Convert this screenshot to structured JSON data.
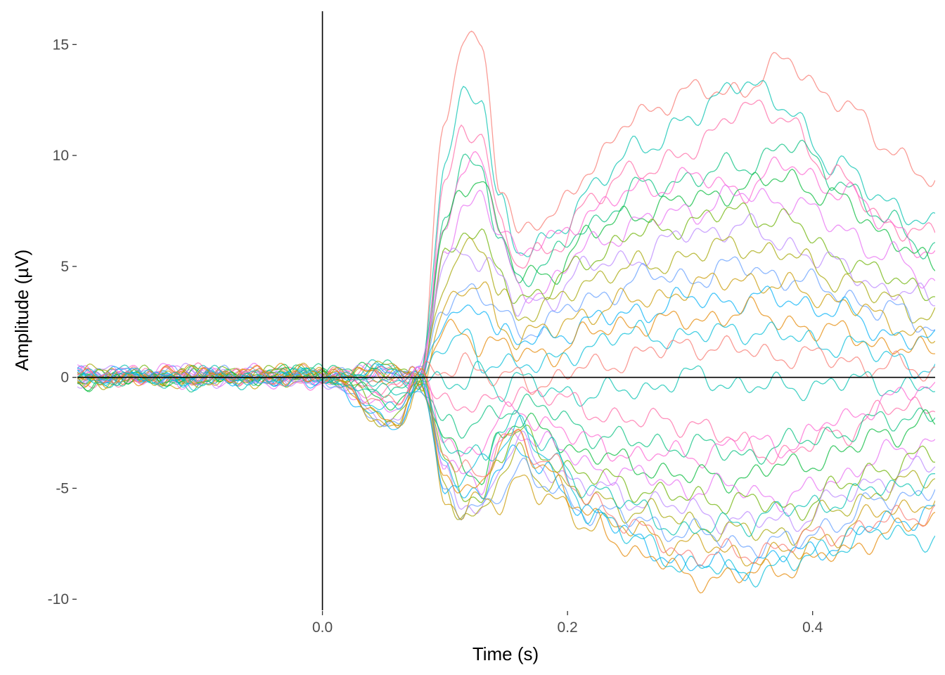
{
  "chart_data": {
    "type": "line",
    "xlabel": "Time (s)",
    "ylabel": "Amplitude (µV)",
    "xlim": [
      -0.2,
      0.5
    ],
    "ylim": [
      -10.5,
      16.5
    ],
    "x_ticks": [
      0.0,
      0.2,
      0.4
    ],
    "x_tick_labels": [
      "0.0",
      "0.2",
      "0.4"
    ],
    "y_ticks": [
      -10,
      -5,
      0,
      5,
      10,
      15
    ],
    "y_tick_labels": [
      "-10",
      "-5",
      "0",
      "5",
      "10",
      "15"
    ],
    "reference_lines": {
      "x": 0.0,
      "y": 0.0
    },
    "grid": false,
    "legend": "none",
    "sample_times": [
      -0.2,
      -0.1,
      0.0,
      0.06,
      0.08,
      0.1,
      0.115,
      0.13,
      0.145,
      0.16,
      0.18,
      0.22,
      0.26,
      0.3,
      0.34,
      0.38,
      0.42,
      0.46,
      0.5
    ],
    "palette": [
      "#F8766D",
      "#E58700",
      "#C99800",
      "#A3A500",
      "#6BB100",
      "#00BA38",
      "#00BF7D",
      "#00C0AF",
      "#00BCD8",
      "#00B0F6",
      "#619CFF",
      "#B983FF",
      "#E76BF3",
      "#FD61D1",
      "#FF67A4"
    ],
    "series": [
      {
        "values": [
          0.1,
          -0.1,
          0.2,
          0.3,
          0,
          11.5,
          15.2,
          15.0,
          9.0,
          6.3,
          7.0,
          9.5,
          12.0,
          12.8,
          13.0,
          14.2,
          12.5,
          10.5,
          8.8
        ]
      },
      {
        "values": [
          0.2,
          0.1,
          0,
          0.5,
          0,
          9.5,
          12.5,
          12.8,
          8.0,
          5.5,
          6.0,
          8.5,
          10.5,
          11.5,
          13.5,
          12.0,
          9.5,
          8.0,
          6.7
        ]
      },
      {
        "values": [
          -0.1,
          0.2,
          0.1,
          0.2,
          0,
          8.5,
          11.0,
          11.2,
          7.0,
          5.0,
          5.5,
          8.0,
          9.5,
          10.0,
          12.3,
          11.5,
          9.0,
          7.0,
          6.3
        ]
      },
      {
        "values": [
          0,
          -0.2,
          0.3,
          0.4,
          0,
          7.5,
          9.5,
          9.2,
          6.2,
          4.5,
          5.0,
          7.0,
          8.5,
          9.0,
          9.5,
          10.5,
          9.0,
          7.0,
          5.8
        ]
      },
      {
        "values": [
          0.3,
          0,
          -0.1,
          0.1,
          0,
          7.0,
          9.0,
          10.0,
          7.0,
          5.5,
          6.0,
          7.5,
          8.5,
          9.0,
          8.5,
          9.5,
          8.5,
          7.0,
          5.5
        ]
      },
      {
        "values": [
          -0.2,
          0.1,
          0.2,
          0.3,
          0,
          6.5,
          8.5,
          9.3,
          6.5,
          4.5,
          4.5,
          6.5,
          7.5,
          8.0,
          8.5,
          9.0,
          8.0,
          6.5,
          4.9
        ]
      },
      {
        "values": [
          0.1,
          0.3,
          0,
          0.2,
          0,
          6.0,
          7.5,
          8.3,
          6.0,
          4.0,
          4.0,
          6.0,
          7.0,
          7.5,
          8.2,
          8.0,
          6.8,
          5.5,
          4.2
        ]
      },
      {
        "values": [
          0,
          0.2,
          -0.2,
          0.1,
          0,
          5.5,
          6.5,
          6.0,
          5.0,
          3.5,
          3.8,
          5.5,
          6.5,
          7.0,
          7.5,
          7.0,
          5.5,
          4.5,
          3.9
        ]
      },
      {
        "values": [
          0.2,
          -0.1,
          0.1,
          0.3,
          0,
          5.0,
          6.0,
          5.2,
          4.5,
          3.0,
          3.5,
          5.0,
          5.5,
          6.5,
          6.8,
          6.0,
          5.0,
          4.0,
          3.4
        ]
      },
      {
        "values": [
          -0.1,
          0,
          0.2,
          0.4,
          0,
          4.5,
          5.5,
          5.8,
          4.0,
          2.8,
          3.0,
          4.5,
          5.0,
          5.5,
          6.0,
          5.5,
          4.5,
          3.5,
          2.8
        ]
      },
      {
        "values": [
          0.1,
          0.1,
          0,
          0.2,
          0,
          3.5,
          4.0,
          3.5,
          3.0,
          2.0,
          2.5,
          3.5,
          4.5,
          4.5,
          5.0,
          4.5,
          3.8,
          3.0,
          2.3
        ]
      },
      {
        "values": [
          0,
          -0.2,
          0.1,
          0.2,
          0,
          3.0,
          3.8,
          4.2,
          2.5,
          1.8,
          2.0,
          3.0,
          3.5,
          4.0,
          4.5,
          4.0,
          3.5,
          2.5,
          1.8
        ]
      },
      {
        "values": [
          0.2,
          0,
          -0.1,
          0.3,
          0,
          2.5,
          2.8,
          3.5,
          2.0,
          1.5,
          1.8,
          2.5,
          3.0,
          3.5,
          3.5,
          3.5,
          3.0,
          2.0,
          1.5
        ]
      },
      {
        "values": [
          -0.1,
          0.2,
          0.2,
          0.1,
          0,
          2.0,
          2.2,
          1.5,
          1.5,
          1.0,
          1.0,
          2.0,
          2.5,
          2.5,
          3.0,
          2.5,
          2.0,
          1.5,
          1.0
        ]
      },
      {
        "values": [
          0.1,
          -0.1,
          0,
          0.2,
          0,
          1.5,
          1.8,
          0.5,
          1.0,
          0.5,
          0.5,
          1.5,
          2.0,
          1.8,
          2.2,
          1.8,
          1.5,
          1.0,
          0.3
        ]
      },
      {
        "values": [
          0,
          0.1,
          0.1,
          -0.2,
          0,
          0.5,
          0.8,
          0.2,
          -0.3,
          0.2,
          -0.3,
          0.5,
          1.0,
          1.5,
          1.2,
          1.0,
          0.8,
          0.5,
          0.2
        ]
      },
      {
        "values": [
          0.2,
          -0.2,
          0.1,
          -0.3,
          0,
          -0.5,
          -0.3,
          0.5,
          -0.5,
          -0.2,
          -0.5,
          -0.8,
          -0.5,
          0.0,
          -0.3,
          -0.5,
          -0.2,
          -0.3,
          -0.5
        ]
      },
      {
        "values": [
          -0.1,
          0.1,
          -0.1,
          -0.5,
          0,
          -1.0,
          -1.2,
          -1.5,
          -1.0,
          -0.5,
          -0.8,
          -1.5,
          -2.0,
          -2.0,
          -3.0,
          -3.5,
          -2.5,
          -1.5,
          -1.2
        ]
      },
      {
        "values": [
          0,
          -0.1,
          0.2,
          -0.8,
          0,
          -2.0,
          -2.5,
          -2.0,
          -1.5,
          -1.0,
          -1.5,
          -2.5,
          -3.0,
          -3.0,
          -3.5,
          -3.0,
          -2.5,
          -2.0,
          -1.5
        ]
      },
      {
        "values": [
          0.1,
          0.2,
          -0.2,
          -1.0,
          0,
          -2.5,
          -3.5,
          -3.0,
          -2.0,
          -1.5,
          -2.0,
          -3.0,
          -3.5,
          -3.5,
          -3.0,
          -3.0,
          -2.0,
          -1.0,
          -0.5
        ]
      },
      {
        "values": [
          -0.2,
          0,
          0.1,
          -1.2,
          0,
          -3.0,
          -4.0,
          -4.5,
          -2.5,
          -2.0,
          -2.5,
          -3.5,
          -4.0,
          -4.5,
          -4.5,
          -4.0,
          -3.5,
          -2.5,
          -2.0
        ]
      },
      {
        "values": [
          0.1,
          -0.2,
          -0.1,
          -1.5,
          0,
          -3.5,
          -4.5,
          -5.0,
          -3.0,
          -2.2,
          -3.0,
          -4.0,
          -4.5,
          -5.0,
          -5.0,
          -5.5,
          -4.5,
          -3.5,
          -2.8
        ]
      },
      {
        "values": [
          0,
          0.1,
          0.2,
          -1.8,
          0,
          -4.0,
          -5.0,
          -5.5,
          -3.5,
          -2.5,
          -3.5,
          -4.5,
          -5.0,
          -5.5,
          -5.5,
          -6.0,
          -5.0,
          -4.0,
          -3.5
        ]
      },
      {
        "values": [
          -0.1,
          0.2,
          -0.2,
          -2.0,
          0,
          -4.5,
          -5.5,
          -6.0,
          -4.0,
          -3.0,
          -4.0,
          -5.0,
          -5.5,
          -6.0,
          -6.5,
          -6.5,
          -5.5,
          -4.5,
          -4.0
        ]
      },
      {
        "values": [
          0.2,
          -0.1,
          0.1,
          -2.2,
          0,
          -5.0,
          -6.0,
          -6.3,
          -4.5,
          -3.5,
          -4.5,
          -5.5,
          -6.0,
          -6.5,
          -7.0,
          -7.0,
          -6.0,
          -5.0,
          -4.5
        ]
      },
      {
        "values": [
          0,
          0.1,
          0,
          -2.4,
          0,
          -5.2,
          -6.2,
          -6.0,
          -5.0,
          -4.0,
          -5.0,
          -6.0,
          -6.5,
          -7.0,
          -7.5,
          -7.5,
          -6.5,
          -5.5,
          -5.0
        ]
      },
      {
        "values": [
          -0.1,
          -0.1,
          0.2,
          -2.5,
          0,
          -5.5,
          -6.3,
          -5.5,
          -5.5,
          -4.5,
          -5.5,
          -6.5,
          -7.0,
          -7.5,
          -8.0,
          -8.0,
          -7.0,
          -6.0,
          -5.5
        ]
      },
      {
        "values": [
          0.1,
          0,
          -0.1,
          -2.3,
          0,
          -4.8,
          -5.8,
          -5.0,
          -4.0,
          -3.0,
          -4.5,
          -6.0,
          -7.5,
          -8.5,
          -8.5,
          -8.0,
          -7.5,
          -6.5,
          -6.0
        ]
      },
      {
        "values": [
          -0.2,
          0.2,
          0.1,
          -2.0,
          0,
          -4.2,
          -5.2,
          -4.5,
          -3.5,
          -2.5,
          -4.0,
          -6.5,
          -8.0,
          -9.0,
          -9.0,
          -8.5,
          -8.0,
          -7.0,
          -6.5
        ]
      },
      {
        "values": [
          0.1,
          -0.2,
          0,
          -1.6,
          0,
          -3.8,
          -4.8,
          -4.0,
          -3.0,
          -2.0,
          -3.5,
          -6.0,
          -7.5,
          -8.5,
          -8.8,
          -8.5,
          -7.5,
          -7.0,
          -7.2
        ]
      },
      {
        "values": [
          0,
          0.1,
          -0.1,
          -1.2,
          0,
          -3.2,
          -4.2,
          -4.8,
          -2.8,
          -2.5,
          -3.8,
          -5.5,
          -7.0,
          -8.0,
          -8.0,
          -7.5,
          -7.0,
          -6.5,
          -6.0
        ]
      },
      {
        "values": [
          -0.1,
          0.1,
          0.1,
          -0.8,
          0,
          -2.8,
          -3.8,
          -3.5,
          -2.2,
          -1.8,
          -3.2,
          -5.0,
          -6.0,
          -7.0,
          -6.5,
          -6.0,
          -5.5,
          -5.0,
          -4.5
        ]
      }
    ]
  }
}
